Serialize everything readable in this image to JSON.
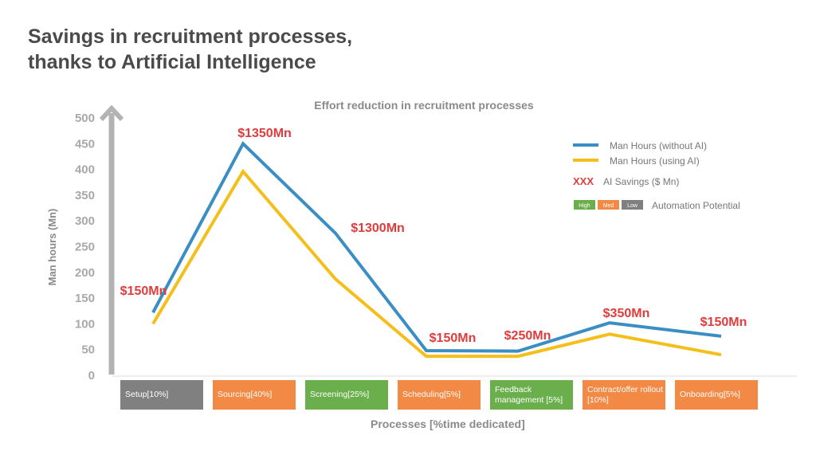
{
  "page_title": [
    "Savings in recruitment processes,",
    "thanks to Artificial Intelligence"
  ],
  "chart_data": {
    "type": "line",
    "title": "Effort reduction in recruitment processes",
    "xlabel": "Processes [%time dedicated]",
    "ylabel": "Man hours (Mn)",
    "ylim": [
      0,
      500
    ],
    "yticks": [
      "0",
      "50",
      "100",
      "150",
      "200",
      "250",
      "300",
      "350",
      "400",
      "450",
      "500"
    ],
    "grid": false,
    "legend_placement": "top-right",
    "categories": [
      "Setup[10%]",
      "Sourcing[40%]",
      "Screening[25%]",
      "Scheduling[5%]",
      "Feedback management [5%]",
      "Contract/offer rollout [10%]",
      "Onboarding[5%]"
    ],
    "category_potential": [
      "Low",
      "Med",
      "High",
      "Med",
      "High",
      "Med",
      "Med"
    ],
    "series": [
      {
        "name": "Man Hours (without AI)",
        "color": "#3a8ec4",
        "values": [
          122,
          450,
          276,
          48,
          47,
          102,
          76
        ]
      },
      {
        "name": "Man Hours (using AI)",
        "color": "#f5bf1b",
        "values": [
          100,
          396,
          187,
          37,
          37,
          80,
          40
        ]
      }
    ],
    "savings_labels": [
      "$150Mn",
      "$1350Mn",
      "$1300Mn",
      "$150Mn",
      "$250Mn",
      "$350Mn",
      "$150Mn"
    ],
    "savings_legend": {
      "marker": "XXX",
      "label": "AI Savings ($ Mn)",
      "color": "#e03c3c"
    },
    "potential_legend": {
      "items": [
        {
          "label": "High",
          "color": "#6aaf4c"
        },
        {
          "label": "Med",
          "color": "#f28a45"
        },
        {
          "label": "Low",
          "color": "#808080"
        }
      ],
      "label": "Automation Potential"
    }
  }
}
